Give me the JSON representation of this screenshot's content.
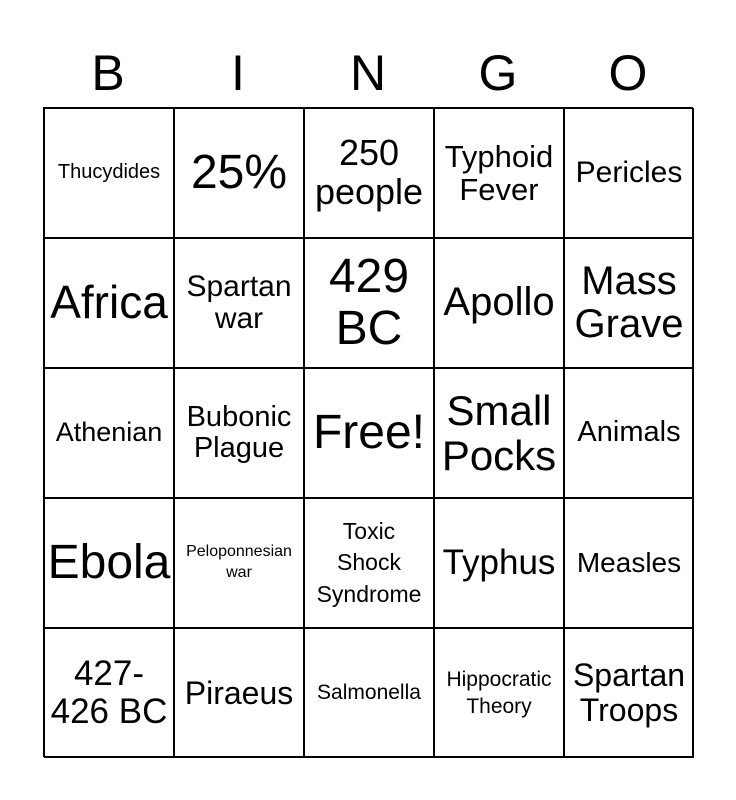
{
  "header": [
    "B",
    "I",
    "N",
    "G",
    "O"
  ],
  "cells": [
    "Thucydides",
    "25%",
    "250\npeople",
    "Typhoid\nFever",
    "Pericles",
    "Africa",
    "Spartan\nwar",
    "429\nBC",
    "Apollo",
    "Mass\nGrave",
    "Athenian",
    "Bubonic\nPlague",
    "Free!",
    "Small\nPocks",
    "Animals",
    "Ebola",
    "Peloponnesian\nwar",
    "Toxic\nShock\nSyndrome",
    "Typhus",
    "Measles",
    "427-\n426 BC",
    "Piraeus",
    "Salmonella",
    "Hippocratic\nTheory",
    "Spartan\nTroops"
  ]
}
